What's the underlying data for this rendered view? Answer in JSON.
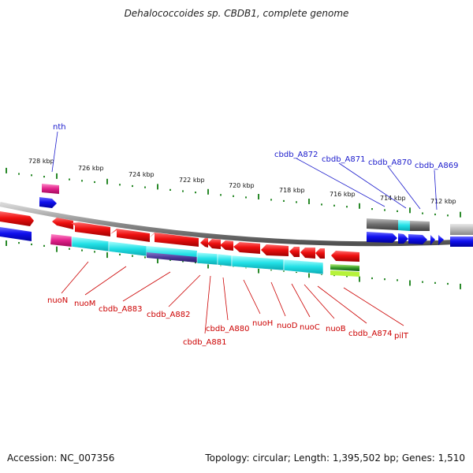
{
  "title": "Dehalococcoides sp. CBDB1, complete genome",
  "footer": {
    "accession": "Accession: NC_007356",
    "stats": "Topology: circular; Length: 1,395,502 bp; Genes: 1,510"
  },
  "scale_labels": [
    "728 kbp",
    "726 kbp",
    "724 kbp",
    "722 kbp",
    "720 kbp",
    "718 kbp",
    "716 kbp",
    "714 kbp",
    "712 kbp"
  ],
  "genes_top": [
    "nth",
    "cbdb_A872",
    "cbdb_A871",
    "cbdb_A870",
    "cbdb_A869"
  ],
  "genes_bottom": [
    "nuoN",
    "nuoM",
    "cbdb_A883",
    "cbdb_A882",
    "cbdb_A881",
    "cbdb_A880",
    "nuoH",
    "nuoD",
    "nuoC",
    "nuoB",
    "cbdb_A874",
    "pilT"
  ],
  "colors": {
    "forward": "#1010ee",
    "reverse": "#dd0d0d",
    "cyan": "#22e0e6",
    "magenta": "#e0208a",
    "indigo": "#4d3a9a",
    "grey": "#707070",
    "green": "#3aa02a",
    "scale": "#2a8a2a",
    "backbone": "#909090"
  }
}
